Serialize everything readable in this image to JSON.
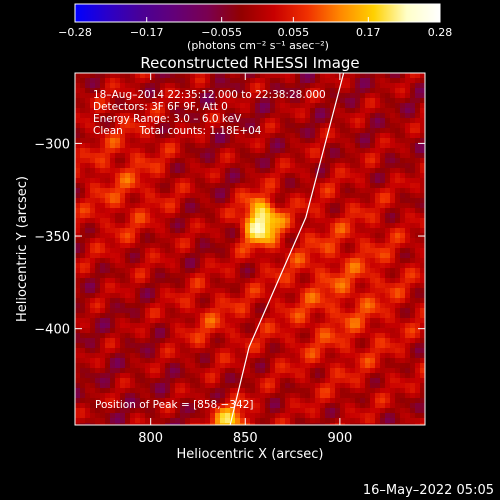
{
  "chart_data": {
    "type": "heatmap",
    "title": "Reconstructed RHESSI Image",
    "xlabel": "Heliocentric X (arcsec)",
    "ylabel": "Heliocentric Y (arcsec)",
    "xlim": [
      760,
      945
    ],
    "ylim": [
      -452,
      -262
    ],
    "x_ticks": [
      800,
      850,
      900
    ],
    "x_tick_labels": [
      "800",
      "850",
      "900"
    ],
    "y_ticks": [
      -300,
      -350,
      -400
    ],
    "y_tick_labels": [
      "−300",
      "−350",
      "−400"
    ],
    "colorbar": {
      "range": [
        -0.28,
        0.28
      ],
      "ticks": [
        -0.28,
        -0.17,
        -0.055,
        0.055,
        0.17,
        0.28
      ],
      "tick_labels": [
        "−0.28",
        "−0.17",
        "−0.055",
        "0.055",
        "0.17",
        "0.28"
      ],
      "units_label": "(photons cm⁻² s⁻¹ asec⁻²)",
      "colormap": [
        "#0000ff",
        "#2b00c8",
        "#4a0096",
        "#630078",
        "#7a0050",
        "#920000",
        "#c80000",
        "#f03000",
        "#ff8800",
        "#ffd000",
        "#ffffc8",
        "#ffffff"
      ]
    },
    "annotations": [
      "18–Aug–2014 22:35:12.000 to 22:38:28.000",
      "Detectors: 3F 6F 9F, Att 0",
      "Energy Range: 3.0 – 6.0 keV",
      "Clean     Total counts: 1.18E+04"
    ],
    "peak_label": "Position of Peak = [858,−342]",
    "peak": {
      "x": 858,
      "y": -342,
      "value": 0.28
    },
    "sources": [
      {
        "x": 858,
        "y": -342,
        "sigma_x": 7,
        "sigma_y": 9,
        "amplitude": 0.24
      },
      {
        "x": 842,
        "y": -452,
        "sigma_x": 8,
        "sigma_y": 8,
        "amplitude": 0.18
      },
      {
        "x": 785,
        "y": -320,
        "sigma_x": 20,
        "sigma_y": 30,
        "amplitude": 0.07
      },
      {
        "x": 900,
        "y": -380,
        "sigma_x": 30,
        "sigma_y": 40,
        "amplitude": 0.08
      },
      {
        "x": 830,
        "y": -395,
        "sigma_x": 15,
        "sigma_y": 15,
        "amplitude": 0.06
      }
    ],
    "limb": [
      [
        902,
        -262
      ],
      [
        882,
        -340
      ],
      [
        852,
        -410
      ],
      [
        842,
        -452
      ]
    ]
  },
  "footer": {
    "date": "16–May–2022 05:05"
  }
}
